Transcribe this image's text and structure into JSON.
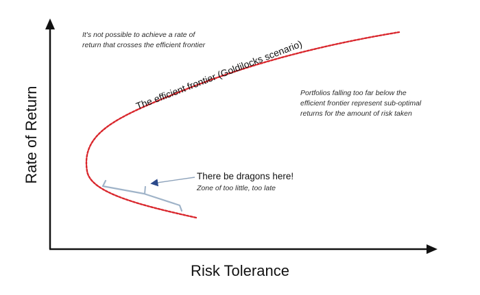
{
  "axes": {
    "y_label": "Rate of Return",
    "x_label": "Risk Tolerance"
  },
  "frontier": {
    "label": "The efficient frontier (Goldilocks scenario)",
    "color": "#d9262c"
  },
  "notes": {
    "above": "It's not possible to achieve a rate of return that crosses the efficient frontier",
    "below": "Portfolios falling too far below the efficient frontier represent sub-optimal returns for the amount of risk taken"
  },
  "callout": {
    "title": "There be dragons here!",
    "subtitle": "Zone of too little, too late",
    "color": "#9fb3c8"
  },
  "icons": {
    "y_axis_arrow": "arrow-up-icon",
    "x_axis_arrow": "arrow-right-icon",
    "callout_pointer": "arrow-pointer-icon"
  }
}
